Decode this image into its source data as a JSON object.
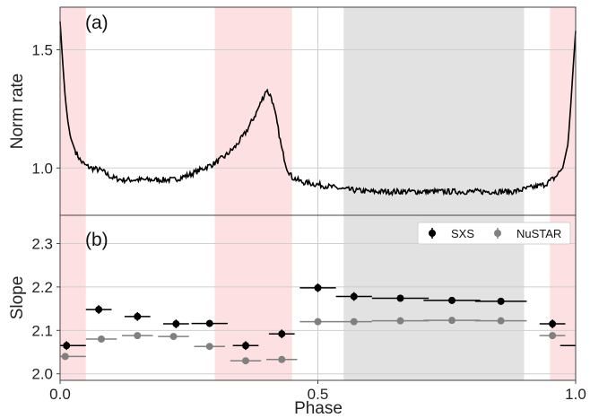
{
  "chart_data": [
    {
      "type": "line",
      "panel_label": "(a)",
      "xlabel": "",
      "ylabel": "Norm rate",
      "xlim": [
        0.0,
        1.0
      ],
      "ylim": [
        0.8,
        1.68
      ],
      "yticks": [
        1.0,
        1.5
      ],
      "ytick_labels": [
        "1.0",
        "1.5"
      ],
      "xticks": [
        0.0,
        0.5,
        1.0
      ],
      "grid": true,
      "shaded_regions": [
        {
          "x": [
            0.0,
            0.05
          ],
          "color": "#fde0e2"
        },
        {
          "x": [
            0.3,
            0.45
          ],
          "color": "#fde0e2"
        },
        {
          "x": [
            0.55,
            0.9
          ],
          "color": "#e2e2e2"
        },
        {
          "x": [
            0.95,
            1.0
          ],
          "color": "#fde0e2"
        }
      ],
      "series": [
        {
          "color": "#000000",
          "x": [
            0.0,
            0.005,
            0.01,
            0.015,
            0.02,
            0.03,
            0.04,
            0.05,
            0.06,
            0.08,
            0.1,
            0.12,
            0.15,
            0.18,
            0.2,
            0.22,
            0.25,
            0.28,
            0.3,
            0.32,
            0.34,
            0.36,
            0.38,
            0.39,
            0.4,
            0.41,
            0.42,
            0.43,
            0.44,
            0.45,
            0.47,
            0.5,
            0.55,
            0.6,
            0.65,
            0.7,
            0.75,
            0.8,
            0.85,
            0.88,
            0.9,
            0.92,
            0.94,
            0.96,
            0.975,
            0.985,
            0.99,
            0.995,
            1.0
          ],
          "y": [
            1.62,
            1.45,
            1.3,
            1.2,
            1.13,
            1.07,
            1.03,
            1.01,
            1.0,
            0.99,
            0.96,
            0.95,
            0.95,
            0.95,
            0.95,
            0.95,
            0.97,
            1.0,
            1.02,
            1.05,
            1.09,
            1.15,
            1.23,
            1.28,
            1.33,
            1.3,
            1.2,
            1.08,
            1.0,
            0.96,
            0.94,
            0.93,
            0.91,
            0.9,
            0.9,
            0.9,
            0.9,
            0.9,
            0.9,
            0.9,
            0.91,
            0.92,
            0.93,
            0.96,
            1.0,
            1.1,
            1.25,
            1.42,
            1.58
          ]
        }
      ]
    },
    {
      "type": "scatter",
      "panel_label": "(b)",
      "xlabel": "Phase",
      "ylabel": "Slope",
      "xlim": [
        0.0,
        1.0
      ],
      "ylim": [
        1.985,
        2.365
      ],
      "yticks": [
        2.0,
        2.1,
        2.2,
        2.3
      ],
      "ytick_labels": [
        "2.0",
        "2.1",
        "2.2",
        "2.3"
      ],
      "xticks": [
        0.0,
        0.5,
        1.0
      ],
      "xtick_labels": [
        "0.0",
        "0.5",
        "1.0"
      ],
      "grid": true,
      "legend_position": "top-right",
      "shaded_regions": [
        {
          "x": [
            0.0,
            0.05
          ],
          "color": "#fde0e2"
        },
        {
          "x": [
            0.3,
            0.45
          ],
          "color": "#fde0e2"
        },
        {
          "x": [
            0.55,
            0.9
          ],
          "color": "#e2e2e2"
        },
        {
          "x": [
            0.95,
            1.0
          ],
          "color": "#fde0e2"
        }
      ],
      "series": [
        {
          "name": "SXS",
          "color": "#000000",
          "points": [
            {
              "x": 0.0125,
              "xerr": 0.0375,
              "y": 2.065,
              "yerr": 0.01
            },
            {
              "x": 0.075,
              "xerr": 0.025,
              "y": 2.148,
              "yerr": 0.01
            },
            {
              "x": 0.15,
              "xerr": 0.025,
              "y": 2.132,
              "yerr": 0.01
            },
            {
              "x": 0.225,
              "xerr": 0.025,
              "y": 2.115,
              "yerr": 0.01
            },
            {
              "x": 0.29,
              "xerr": 0.035,
              "y": 2.116,
              "yerr": 0.008
            },
            {
              "x": 0.36,
              "xerr": 0.025,
              "y": 2.065,
              "yerr": 0.01
            },
            {
              "x": 0.43,
              "xerr": 0.025,
              "y": 2.092,
              "yerr": 0.01
            },
            {
              "x": 0.5,
              "xerr": 0.035,
              "y": 2.198,
              "yerr": 0.01
            },
            {
              "x": 0.57,
              "xerr": 0.035,
              "y": 2.178,
              "yerr": 0.01
            },
            {
              "x": 0.66,
              "xerr": 0.055,
              "y": 2.174,
              "yerr": 0.008
            },
            {
              "x": 0.76,
              "xerr": 0.055,
              "y": 2.169,
              "yerr": 0.008
            },
            {
              "x": 0.855,
              "xerr": 0.05,
              "y": 2.167,
              "yerr": 0.008
            },
            {
              "x": 0.955,
              "xerr": 0.025,
              "y": 2.115,
              "yerr": 0.01
            },
            {
              "x": 1.0,
              "xerr": 0.03,
              "y": 2.065,
              "yerr": 0.0
            }
          ]
        },
        {
          "name": "NuSTAR",
          "color": "#808080",
          "points": [
            {
              "x": 0.01,
              "xerr": 0.04,
              "y": 2.04,
              "yerr": 0.004
            },
            {
              "x": 0.08,
              "xerr": 0.03,
              "y": 2.08,
              "yerr": 0.004
            },
            {
              "x": 0.15,
              "xerr": 0.03,
              "y": 2.088,
              "yerr": 0.004
            },
            {
              "x": 0.22,
              "xerr": 0.03,
              "y": 2.086,
              "yerr": 0.004
            },
            {
              "x": 0.29,
              "xerr": 0.03,
              "y": 2.063,
              "yerr": 0.004
            },
            {
              "x": 0.36,
              "xerr": 0.03,
              "y": 2.03,
              "yerr": 0.004
            },
            {
              "x": 0.43,
              "xerr": 0.03,
              "y": 2.033,
              "yerr": 0.004
            },
            {
              "x": 0.5,
              "xerr": 0.035,
              "y": 2.12,
              "yerr": 0.004
            },
            {
              "x": 0.57,
              "xerr": 0.035,
              "y": 2.12,
              "yerr": 0.004
            },
            {
              "x": 0.66,
              "xerr": 0.055,
              "y": 2.122,
              "yerr": 0.004
            },
            {
              "x": 0.76,
              "xerr": 0.055,
              "y": 2.123,
              "yerr": 0.004
            },
            {
              "x": 0.855,
              "xerr": 0.05,
              "y": 2.122,
              "yerr": 0.004
            },
            {
              "x": 0.955,
              "xerr": 0.025,
              "y": 2.088,
              "yerr": 0.004
            }
          ]
        }
      ]
    }
  ]
}
